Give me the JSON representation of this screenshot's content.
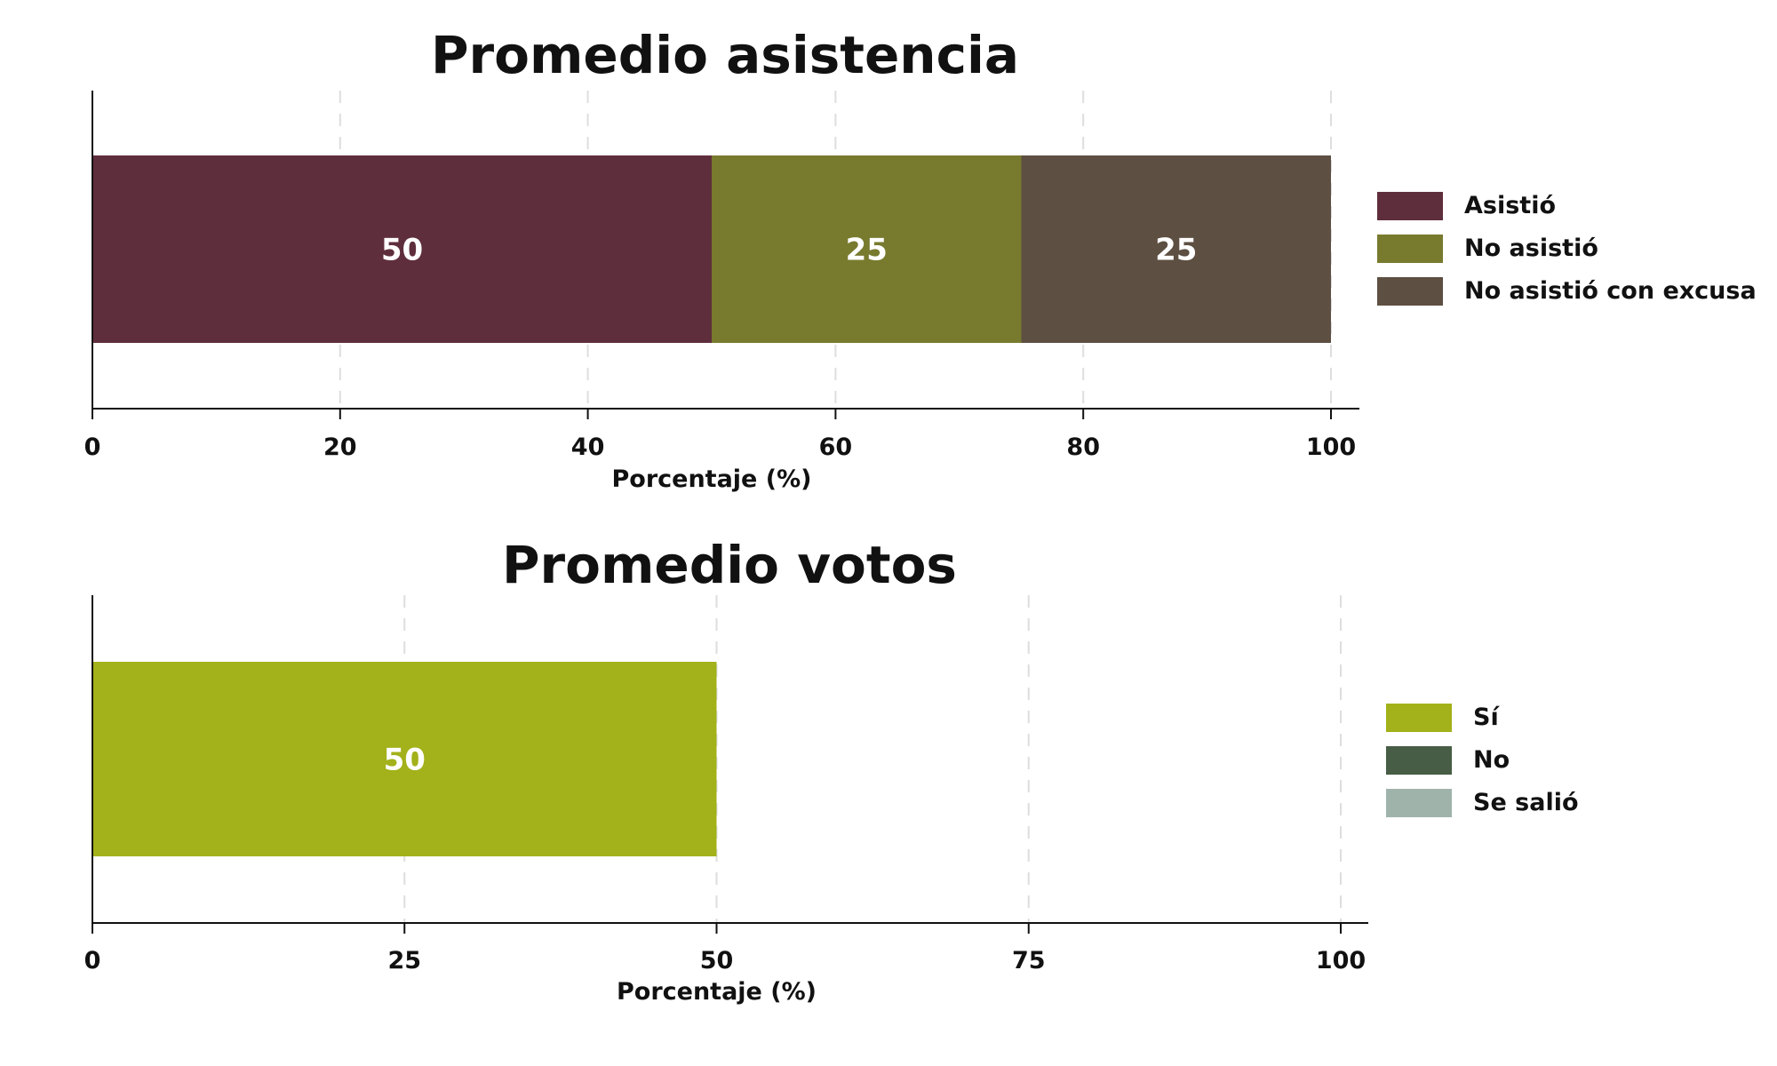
{
  "chart_data": [
    {
      "type": "bar",
      "orientation": "horizontal",
      "stacked": true,
      "title": "Promedio asistencia",
      "xlabel": "Porcentaje (%)",
      "xlim": [
        0,
        100
      ],
      "xticks": [
        0,
        20,
        40,
        60,
        80,
        100
      ],
      "categories": [
        ""
      ],
      "series": [
        {
          "name": "Asistió",
          "values": [
            50
          ],
          "color": "#5f2e3c"
        },
        {
          "name": "No asistió",
          "values": [
            25
          ],
          "color": "#787a2e"
        },
        {
          "name": "No asistió con excusa",
          "values": [
            25
          ],
          "color": "#5d4f41"
        }
      ],
      "grid": "vertical dashed",
      "legend_position": "right"
    },
    {
      "type": "bar",
      "orientation": "horizontal",
      "stacked": true,
      "title": "Promedio votos",
      "xlabel": "Porcentaje (%)",
      "xlim": [
        0,
        100
      ],
      "xticks": [
        0,
        25,
        50,
        75,
        100
      ],
      "categories": [
        ""
      ],
      "series": [
        {
          "name": "Sí",
          "values": [
            50
          ],
          "color": "#a3b11a"
        },
        {
          "name": "No",
          "values": [
            0
          ],
          "color": "#475d45"
        },
        {
          "name": "Se salió",
          "values": [
            0
          ],
          "color": "#a0b3ab"
        }
      ],
      "grid": "vertical dashed",
      "legend_position": "right"
    }
  ]
}
